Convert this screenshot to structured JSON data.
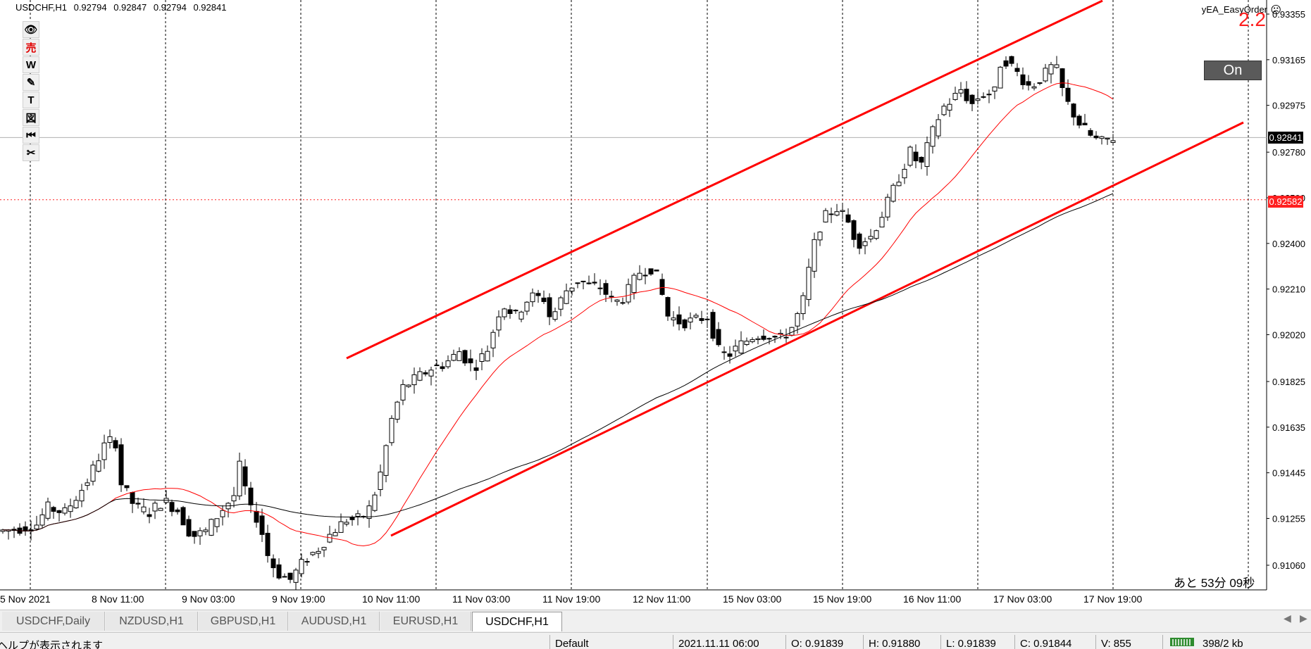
{
  "chart": {
    "symbol": "USDCHF,H1",
    "open": "0.92794",
    "high": "0.92847",
    "low": "0.92794",
    "close": "0.92841"
  },
  "toolbar": {
    "tools": [
      {
        "name": "eye-icon",
        "glyph": "👁"
      },
      {
        "name": "sell-button",
        "glyph": "売"
      },
      {
        "name": "w-tool-button",
        "glyph": "W"
      },
      {
        "name": "pencil-icon",
        "glyph": "✎"
      },
      {
        "name": "text-tool-button",
        "glyph": "T"
      },
      {
        "name": "shape-tool-button",
        "glyph": "図"
      },
      {
        "name": "rewind-icon",
        "glyph": "⏮"
      },
      {
        "name": "scissors-icon",
        "glyph": "✂"
      }
    ]
  },
  "ea": {
    "name": "yEA_EasyOrder",
    "icon": "smiley-icon",
    "version": "2.2",
    "toggle_label": "On"
  },
  "price_axis": {
    "labels": [
      "0.93355",
      "0.93165",
      "0.92975",
      "0.92780",
      "0.92590",
      "0.92400",
      "0.92210",
      "0.92020",
      "0.91825",
      "0.91635",
      "0.91445",
      "0.91255",
      "0.91060"
    ],
    "current_price": "0.92841",
    "marked_price": "0.92582"
  },
  "time_axis": {
    "labels": [
      "5 Nov 2021",
      "8 Nov 11:00",
      "9 Nov 03:00",
      "9 Nov 19:00",
      "10 Nov 11:00",
      "11 Nov 03:00",
      "11 Nov 19:00",
      "12 Nov 11:00",
      "15 Nov 03:00",
      "15 Nov 19:00",
      "16 Nov 11:00",
      "17 Nov 03:00",
      "17 Nov 19:00"
    ]
  },
  "timer_text": "あと 53分 09秒",
  "tabs": [
    {
      "label": "USDCHF,Daily",
      "active": false
    },
    {
      "label": "NZDUSD,H1",
      "active": false
    },
    {
      "label": "GBPUSD,H1",
      "active": false
    },
    {
      "label": "AUDUSD,H1",
      "active": false
    },
    {
      "label": "EURUSD,H1",
      "active": false
    },
    {
      "label": "USDCHF,H1",
      "active": true
    }
  ],
  "status": {
    "help": "ヘルプが表示されます",
    "profile": "Default",
    "datetime": "2021.11.11 06:00",
    "o": "O: 0.91839",
    "h": "H: 0.91880",
    "l": "L: 0.91839",
    "c": "C: 0.91844",
    "v": "V: 855",
    "traffic": "398/2 kb"
  },
  "colors": {
    "channel": "#ff0000",
    "ma_fast": "#ff0000",
    "ma_slow": "#000000",
    "marked_price_bg": "#ff2020",
    "current_price_bg": "#000000"
  }
}
